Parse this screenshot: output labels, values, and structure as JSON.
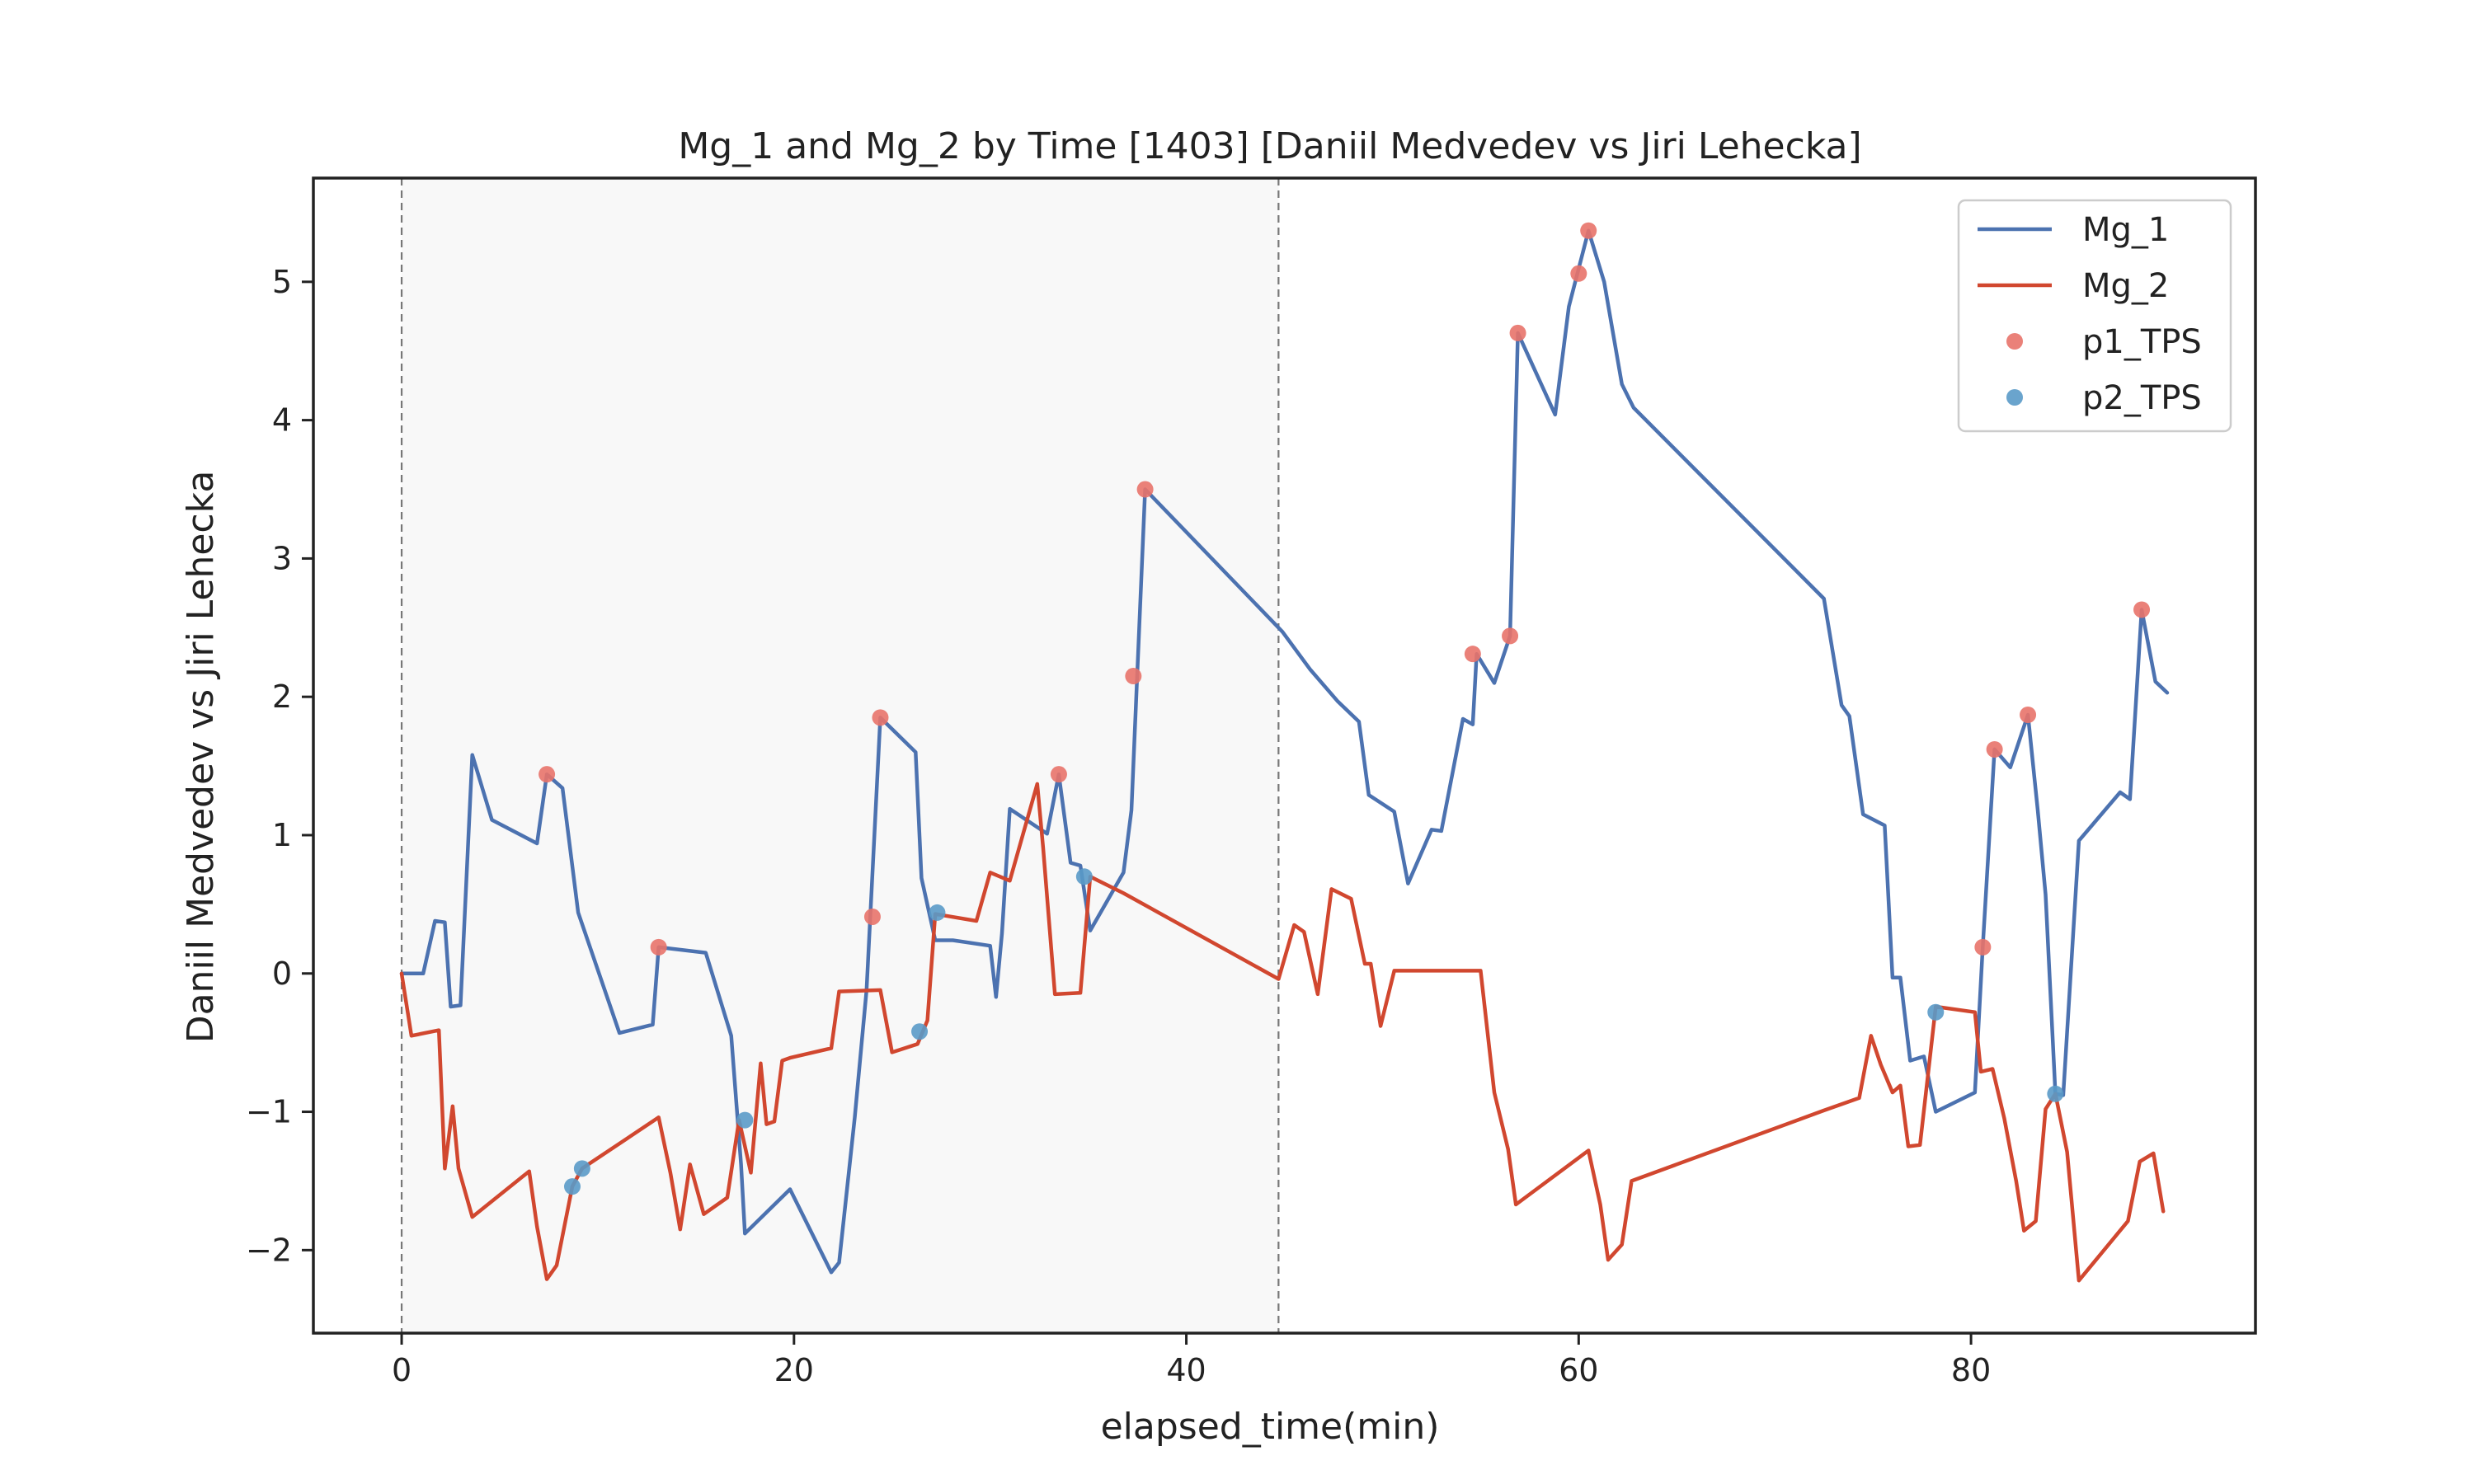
{
  "chart_data": {
    "type": "line",
    "title": "Mg_1 and Mg_2 by Time [1403] [Daniil Medvedev vs Jiri Lehecka]",
    "xlabel": "elapsed_time(min)",
    "ylabel": "Daniil Medvedev vs Jiri Lehecka",
    "xlim": [
      -4.5,
      94.5
    ],
    "ylim": [
      -2.6,
      5.75
    ],
    "xticks": [
      0,
      20,
      40,
      60,
      80
    ],
    "yticks": [
      -2,
      -1,
      0,
      1,
      2,
      3,
      4,
      5
    ],
    "xtick_labels": [
      "0",
      "20",
      "40",
      "60",
      "80"
    ],
    "ytick_labels": [
      "−2",
      "−1",
      "0",
      "1",
      "2",
      "3",
      "4",
      "5"
    ],
    "grid": false,
    "legend_position": "top-right",
    "shaded_region": [
      0,
      44.7
    ],
    "vlines": [
      0,
      44.7
    ],
    "series": [
      {
        "name": "Mg_1",
        "kind": "line",
        "color": "#4c72b0",
        "x": [
          0,
          1.1,
          1.7,
          2.2,
          2.5,
          3.0,
          3.6,
          4.6,
          6.9,
          7.4,
          8.2,
          9.0,
          11.1,
          12.8,
          13.1,
          15.5,
          16.8,
          17.3,
          17.5,
          19.8,
          21.9,
          22.3,
          23.1,
          23.7,
          24.4,
          26.2,
          26.5,
          27.2,
          28.1,
          30.0,
          30.3,
          30.6,
          31.0,
          32.9,
          33.5,
          34.1,
          34.6,
          35.1,
          36.8,
          37.2,
          37.9,
          44.9,
          46.3,
          47.7,
          48.8,
          49.3,
          50.6,
          51.3,
          52.5,
          53.0,
          54.1,
          54.6,
          54.8,
          55.7,
          56.5,
          56.9,
          58.8,
          59.5,
          60.5,
          61.3,
          62.2,
          62.8,
          72.5,
          73.4,
          73.8,
          74.5,
          75.6,
          76.0,
          76.4,
          76.9,
          77.6,
          78.2,
          80.2,
          80.6,
          81.2,
          82.0,
          82.9,
          83.4,
          83.8,
          84.3,
          84.7,
          85.5,
          87.6,
          88.1,
          88.7,
          89.4,
          90.0
        ],
        "values": [
          0,
          0,
          0.38,
          0.37,
          -0.24,
          -0.23,
          1.58,
          1.11,
          0.94,
          1.44,
          1.34,
          0.44,
          -0.43,
          -0.37,
          0.19,
          0.15,
          -0.45,
          -1.38,
          -1.88,
          -1.56,
          -2.16,
          -2.09,
          -1.04,
          -0.12,
          1.85,
          1.6,
          0.69,
          0.24,
          0.24,
          0.2,
          -0.17,
          0.29,
          1.19,
          1.01,
          1.44,
          0.8,
          0.78,
          0.31,
          0.73,
          1.18,
          3.5,
          2.47,
          2.2,
          1.97,
          1.82,
          1.29,
          1.17,
          0.65,
          1.04,
          1.03,
          1.84,
          1.8,
          2.31,
          2.1,
          2.44,
          4.63,
          4.04,
          4.82,
          5.37,
          5.0,
          4.26,
          4.09,
          2.71,
          1.94,
          1.86,
          1.15,
          1.07,
          -0.03,
          -0.03,
          -0.63,
          -0.6,
          -1.0,
          -0.86,
          0.19,
          1.62,
          1.49,
          1.87,
          1.18,
          0.57,
          -0.87,
          -0.88,
          0.96,
          1.31,
          1.26,
          2.63,
          2.11,
          2.03
        ]
      },
      {
        "name": "Mg_2",
        "kind": "line",
        "color": "#d1472f",
        "x": [
          0,
          0.5,
          1.9,
          2.2,
          2.6,
          2.9,
          3.6,
          6.5,
          6.9,
          7.4,
          7.9,
          8.7,
          9.2,
          13.1,
          13.7,
          14.2,
          14.7,
          15.4,
          16.6,
          17.2,
          17.8,
          18.3,
          18.6,
          19.0,
          19.4,
          19.8,
          21.9,
          22.3,
          24.4,
          25.0,
          26.3,
          26.8,
          27.2,
          29.3,
          30.0,
          31.0,
          32.4,
          32.7,
          33.3,
          34.6,
          35.1,
          36.8,
          44.7,
          45.5,
          46.0,
          46.7,
          47.4,
          48.4,
          49.1,
          49.4,
          49.9,
          50.6,
          55.0,
          55.7,
          56.4,
          56.8,
          60.5,
          61.1,
          61.5,
          62.2,
          62.7,
          72.5,
          74.3,
          74.9,
          75.4,
          76.0,
          76.4,
          76.8,
          77.4,
          78.2,
          80.2,
          80.5,
          81.1,
          81.7,
          82.3,
          82.7,
          83.3,
          83.8,
          84.3,
          84.9,
          85.5,
          88.0,
          88.6,
          89.3,
          89.8
        ],
        "values": [
          0,
          -0.45,
          -0.41,
          -1.41,
          -0.96,
          -1.41,
          -1.76,
          -1.43,
          -1.83,
          -2.21,
          -2.11,
          -1.54,
          -1.41,
          -1.04,
          -1.44,
          -1.85,
          -1.38,
          -1.74,
          -1.62,
          -1.06,
          -1.44,
          -0.65,
          -1.09,
          -1.07,
          -0.63,
          -0.61,
          -0.54,
          -0.13,
          -0.12,
          -0.57,
          -0.51,
          -0.34,
          0.43,
          0.38,
          0.73,
          0.67,
          1.37,
          0.91,
          -0.15,
          -0.14,
          0.7,
          0.58,
          -0.04,
          0.35,
          0.3,
          -0.15,
          0.61,
          0.54,
          0.07,
          0.07,
          -0.38,
          0.02,
          0.02,
          -0.86,
          -1.27,
          -1.67,
          -1.28,
          -1.67,
          -2.07,
          -1.96,
          -1.5,
          -0.99,
          -0.9,
          -0.45,
          -0.66,
          -0.86,
          -0.81,
          -1.25,
          -1.24,
          -0.24,
          -0.28,
          -0.71,
          -0.69,
          -1.05,
          -1.5,
          -1.86,
          -1.79,
          -0.98,
          -0.87,
          -1.29,
          -2.22,
          -1.79,
          -1.36,
          -1.3,
          -1.72
        ]
      },
      {
        "name": "p1_TPS",
        "kind": "scatter",
        "color": "#e8736a",
        "x": [
          7.4,
          13.1,
          24.0,
          24.4,
          33.5,
          37.3,
          37.9,
          54.6,
          56.5,
          56.9,
          60.0,
          60.5,
          80.6,
          81.2,
          82.9,
          88.7
        ],
        "values": [
          1.44,
          0.19,
          0.41,
          1.85,
          1.44,
          2.15,
          3.5,
          2.31,
          2.44,
          4.63,
          5.06,
          5.37,
          0.19,
          1.62,
          1.87,
          2.63
        ]
      },
      {
        "name": "p2_TPS",
        "kind": "scatter",
        "color": "#5a9ac8",
        "x": [
          8.7,
          9.2,
          17.5,
          26.4,
          27.3,
          34.8,
          78.2,
          84.3
        ],
        "values": [
          -1.54,
          -1.41,
          -1.06,
          -0.42,
          0.44,
          0.7,
          -0.28,
          -0.87
        ]
      }
    ]
  }
}
